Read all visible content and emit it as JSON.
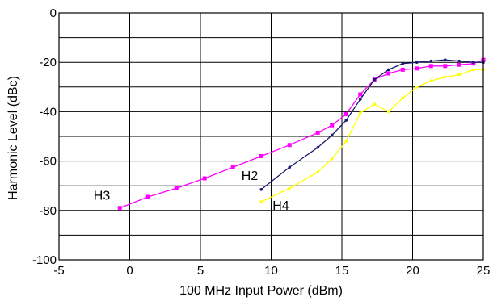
{
  "chart_data": {
    "type": "line",
    "title": "",
    "xlabel": "100 MHz Input Power (dBm)",
    "ylabel": "Harmonic Level (dBc)",
    "xlim": [
      -5,
      25
    ],
    "ylim": [
      -100,
      0
    ],
    "xticks": [
      -5,
      0,
      5,
      10,
      15,
      20,
      25
    ],
    "yticks": [
      0,
      -20,
      -40,
      -60,
      -80,
      -100
    ],
    "minor_y_gridlines": [
      -10,
      -30,
      -50,
      -70,
      -90
    ],
    "grid": true,
    "legend": "none",
    "series": [
      {
        "name": "H3",
        "color": "#ff00ff",
        "marker": "square",
        "x": [
          -0.7,
          1.3,
          3.3,
          5.3,
          7.3,
          9.3,
          11.3,
          13.3,
          14.3,
          15.3,
          16.3,
          17.3,
          18.3,
          19.3,
          20.3,
          21.3,
          22.3,
          23.3,
          24.3,
          25.0
        ],
        "y": [
          -79,
          -74.5,
          -71,
          -67,
          -62.5,
          -58,
          -53.5,
          -48.5,
          -45.5,
          -41,
          -33,
          -27,
          -24.5,
          -23,
          -22.5,
          -21.5,
          -21.5,
          -21,
          -20.5,
          -19
        ]
      },
      {
        "name": "H2",
        "color": "#1a1a6e",
        "marker": "dot",
        "x": [
          9.3,
          11.3,
          13.3,
          14.3,
          15.3,
          16.3,
          17.3,
          18.3,
          19.3,
          20.3,
          21.3,
          22.3,
          23.3,
          24.3,
          25.0
        ],
        "y": [
          -71.5,
          -62.5,
          -54.5,
          -49.5,
          -43.5,
          -35,
          -27,
          -23,
          -20.5,
          -20,
          -19.5,
          -19,
          -19.5,
          -20,
          -20
        ]
      },
      {
        "name": "H4",
        "color": "#ffff00",
        "marker": "dot",
        "x": [
          9.3,
          11.3,
          13.3,
          14.3,
          15.3,
          16.3,
          17.3,
          18.3,
          19.3,
          20.3,
          21.3,
          22.3,
          23.3,
          24.3,
          25.0
        ],
        "y": [
          -76.5,
          -71,
          -64.5,
          -59,
          -52,
          -40.5,
          -37,
          -40,
          -34.5,
          -30,
          -27.5,
          -26,
          -25,
          -23,
          -23
        ]
      }
    ]
  }
}
